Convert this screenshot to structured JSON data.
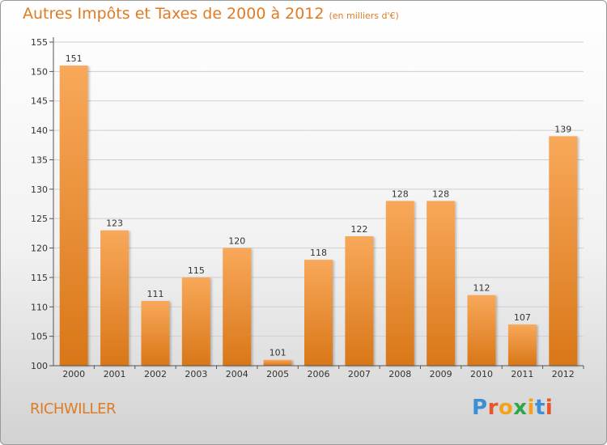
{
  "header": {
    "title": "Autres Impôts et Taxes de 2000 à 2012",
    "unit_note": "(en milliers d'€)"
  },
  "footer": {
    "town": "RICHWILLER",
    "logo_letters": [
      "P",
      "r",
      "o",
      "x",
      "i",
      "t",
      "i"
    ]
  },
  "colors": {
    "accent": "#e07b22",
    "bar_light": "#f8a85a",
    "bar_dark": "#d97718",
    "logo": [
      "#3a8fd6",
      "#e9552a",
      "#f3a21a",
      "#2ba84a",
      "#f3a21a",
      "#3a8fd6",
      "#e9552a"
    ]
  },
  "chart_data": {
    "type": "bar",
    "title": "Autres Impôts et Taxes de 2000 à 2012",
    "subtitle": "(en milliers d'€)",
    "xlabel": "",
    "ylabel": "",
    "categories": [
      "2000",
      "2001",
      "2002",
      "2003",
      "2004",
      "2005",
      "2006",
      "2007",
      "2008",
      "2009",
      "2010",
      "2011",
      "2012"
    ],
    "values": [
      151,
      123,
      111,
      115,
      120,
      101,
      118,
      122,
      128,
      128,
      112,
      107,
      139
    ],
    "ylim": [
      100,
      155
    ],
    "yticks": [
      100,
      105,
      110,
      115,
      120,
      125,
      130,
      135,
      140,
      145,
      150,
      155
    ],
    "grid": true,
    "legend": "none"
  }
}
